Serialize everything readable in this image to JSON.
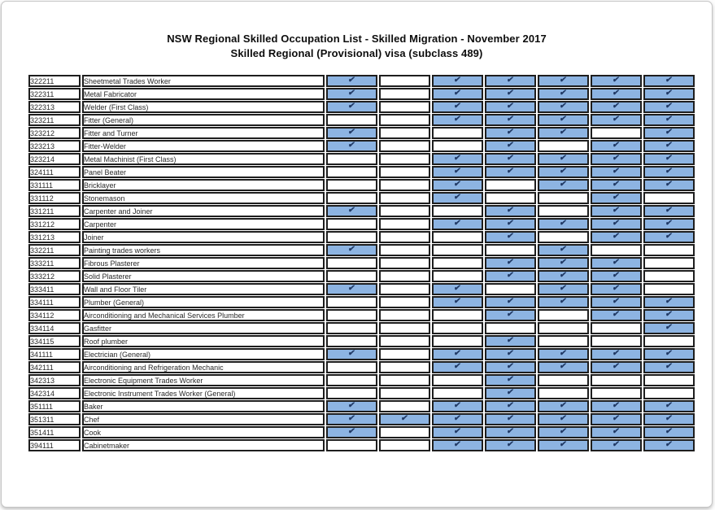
{
  "header": {
    "title_line1": "NSW Regional Skilled Occupation List - Skilled Migration - November 2017",
    "title_line2": "Skilled Regional (Provisional) visa (subclass 489)"
  },
  "colors": {
    "cell_fill": "#8DB4E2",
    "check": "#1F3864",
    "border": "#1e1e1e"
  },
  "check_icon_glyph": "✔",
  "table": {
    "check_column_count": 7,
    "rows": [
      {
        "code": "322211",
        "occupation": "Sheetmetal Trades Worker",
        "checks": [
          1,
          0,
          1,
          1,
          1,
          1,
          1
        ]
      },
      {
        "code": "322311",
        "occupation": "Metal Fabricator",
        "checks": [
          1,
          0,
          1,
          1,
          1,
          1,
          1
        ]
      },
      {
        "code": "322313",
        "occupation": "Welder (First Class)",
        "checks": [
          1,
          0,
          1,
          1,
          1,
          1,
          1
        ]
      },
      {
        "code": "323211",
        "occupation": "Fitter (General)",
        "checks": [
          0,
          0,
          1,
          1,
          1,
          1,
          1
        ]
      },
      {
        "code": "323212",
        "occupation": "Fitter and Turner",
        "checks": [
          1,
          0,
          0,
          1,
          1,
          0,
          1
        ]
      },
      {
        "code": "323213",
        "occupation": "Fitter-Welder",
        "checks": [
          1,
          0,
          0,
          1,
          0,
          1,
          1
        ]
      },
      {
        "code": "323214",
        "occupation": "Metal Machinist (First Class)",
        "checks": [
          0,
          0,
          1,
          1,
          1,
          1,
          1
        ]
      },
      {
        "code": "324111",
        "occupation": "Panel Beater",
        "checks": [
          0,
          0,
          1,
          1,
          1,
          1,
          1
        ]
      },
      {
        "code": "331111",
        "occupation": "Bricklayer",
        "checks": [
          0,
          0,
          1,
          0,
          1,
          1,
          1
        ]
      },
      {
        "code": "331112",
        "occupation": "Stonemason",
        "checks": [
          0,
          0,
          1,
          0,
          0,
          1,
          0
        ]
      },
      {
        "code": "331211",
        "occupation": "Carpenter and Joiner",
        "checks": [
          1,
          0,
          0,
          1,
          0,
          1,
          1
        ]
      },
      {
        "code": "331212",
        "occupation": "Carpenter",
        "checks": [
          0,
          0,
          1,
          1,
          1,
          1,
          1
        ]
      },
      {
        "code": "331213",
        "occupation": "Joiner",
        "checks": [
          0,
          0,
          0,
          1,
          0,
          1,
          1
        ]
      },
      {
        "code": "332211",
        "occupation": "Painting trades workers",
        "checks": [
          1,
          0,
          0,
          0,
          1,
          0,
          0
        ]
      },
      {
        "code": "333211",
        "occupation": "Fibrous Plasterer",
        "checks": [
          0,
          0,
          0,
          1,
          1,
          1,
          0
        ]
      },
      {
        "code": "333212",
        "occupation": "Solid Plasterer",
        "checks": [
          0,
          0,
          0,
          1,
          1,
          1,
          0
        ]
      },
      {
        "code": "333411",
        "occupation": "Wall and Floor Tiler",
        "checks": [
          1,
          0,
          1,
          0,
          1,
          1,
          0
        ]
      },
      {
        "code": "334111",
        "occupation": "Plumber (General)",
        "checks": [
          0,
          0,
          1,
          1,
          1,
          1,
          1
        ]
      },
      {
        "code": "334112",
        "occupation": "Airconditioning and Mechanical Services Plumber",
        "checks": [
          0,
          0,
          0,
          1,
          0,
          1,
          1
        ]
      },
      {
        "code": "334114",
        "occupation": "Gasfitter",
        "checks": [
          0,
          0,
          0,
          0,
          0,
          0,
          1
        ]
      },
      {
        "code": "334115",
        "occupation": "Roof plumber",
        "checks": [
          0,
          0,
          0,
          1,
          0,
          0,
          0
        ]
      },
      {
        "code": "341111",
        "occupation": "Electrician (General)",
        "checks": [
          1,
          0,
          1,
          1,
          1,
          1,
          1
        ]
      },
      {
        "code": "342111",
        "occupation": "Airconditioning and Refrigeration Mechanic",
        "checks": [
          0,
          0,
          1,
          1,
          1,
          1,
          1
        ]
      },
      {
        "code": "342313",
        "occupation": "Electronic Equipment Trades Worker",
        "checks": [
          0,
          0,
          0,
          1,
          0,
          0,
          0
        ]
      },
      {
        "code": "342314",
        "occupation": "Electronic Instrument Trades Worker (General)",
        "checks": [
          0,
          0,
          0,
          1,
          0,
          0,
          0
        ]
      },
      {
        "code": "351111",
        "occupation": "Baker",
        "checks": [
          1,
          0,
          1,
          1,
          1,
          1,
          1
        ]
      },
      {
        "code": "351311",
        "occupation": "Chef",
        "checks": [
          1,
          1,
          1,
          1,
          1,
          1,
          1
        ]
      },
      {
        "code": "351411",
        "occupation": "Cook",
        "checks": [
          1,
          0,
          1,
          1,
          1,
          1,
          1
        ]
      },
      {
        "code": "394111",
        "occupation": "Cabinetmaker",
        "checks": [
          0,
          0,
          1,
          1,
          1,
          1,
          1
        ]
      }
    ]
  }
}
